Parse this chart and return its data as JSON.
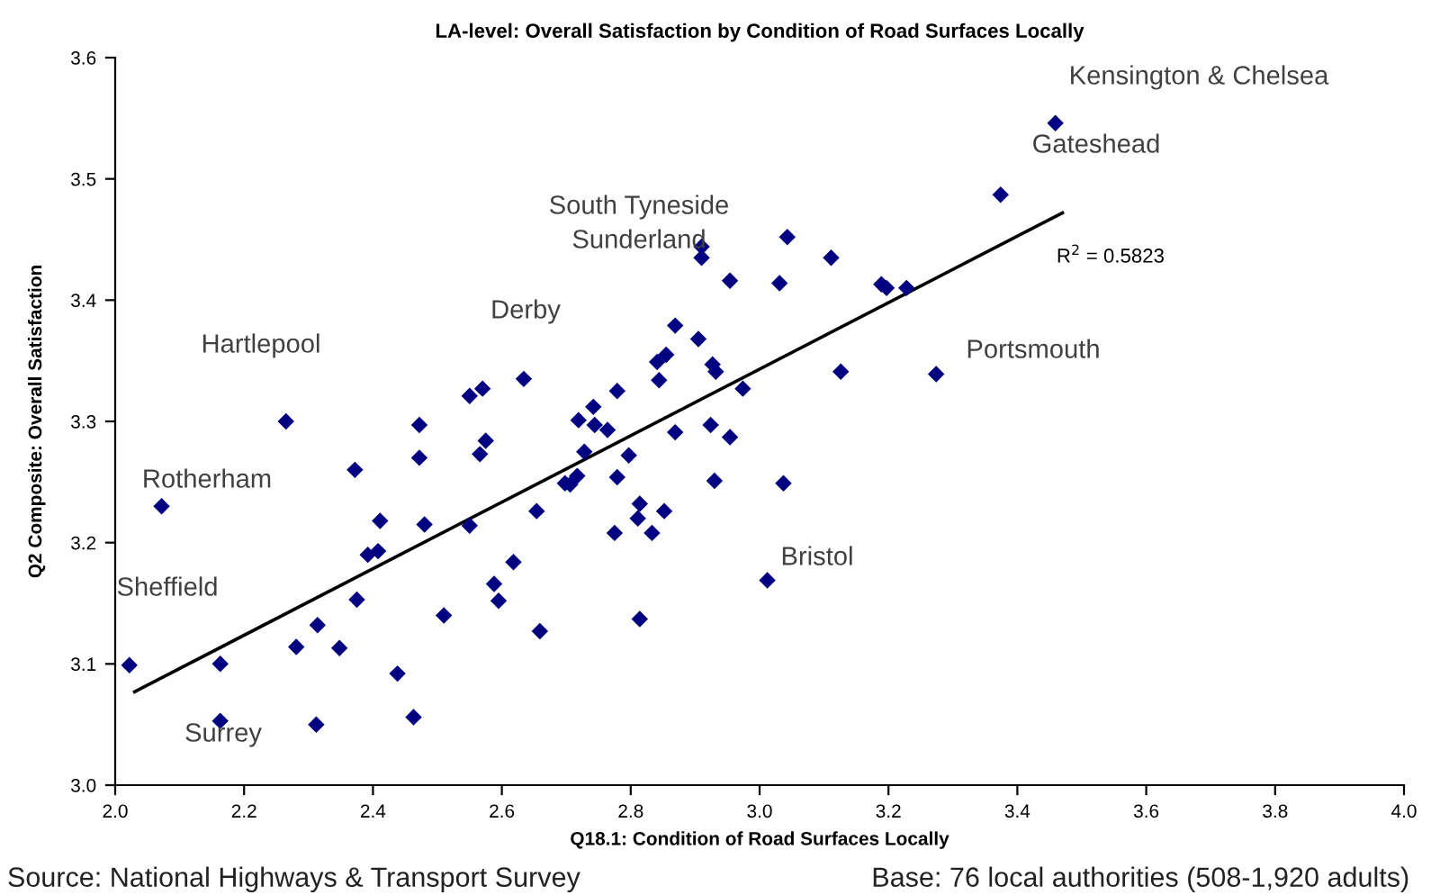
{
  "chart_data": {
    "type": "scatter",
    "title": "LA-level: Overall Satisfaction by Condition of Road Surfaces Locally",
    "xlabel": "Q18.1: Condition of Road Surfaces Locally",
    "ylabel": "Q2 Composite: Overall Satisfaction",
    "xlim": [
      2.0,
      4.0
    ],
    "xticks": [
      {
        "value": 2.0,
        "label": "2.0"
      },
      2.2,
      2.4,
      2.6,
      2.8,
      {
        "value": 3.0,
        "label": "3.0"
      },
      3.2,
      3.4,
      3.6,
      3.8,
      {
        "value": 4.0,
        "label": "4.0"
      }
    ],
    "ylim": [
      3.0,
      3.6
    ],
    "yticks": [
      {
        "value": 3.0,
        "label": "3.0"
      },
      3.1,
      3.2,
      3.3,
      3.4,
      3.5,
      3.6
    ],
    "grid": false,
    "legend": false,
    "marker": "diamond",
    "series": [
      {
        "color": "#000080",
        "x": [
          2.022,
          2.072,
          2.163,
          2.163,
          2.265,
          2.281,
          2.314,
          2.312,
          2.348,
          2.375,
          2.372,
          2.392,
          2.408,
          2.411,
          2.438,
          2.463,
          2.472,
          2.472,
          2.48,
          2.51,
          2.55,
          2.55,
          2.57,
          2.575,
          2.566,
          2.588,
          2.595,
          2.618,
          2.634,
          2.654,
          2.659,
          2.719,
          2.742,
          2.744,
          2.764,
          2.728,
          2.779,
          2.797,
          2.779,
          2.698,
          2.706,
          2.717,
          2.775,
          2.814,
          2.811,
          2.833,
          2.852,
          2.814,
          2.869,
          2.905,
          2.841,
          2.855,
          2.844,
          2.927,
          2.932,
          2.974,
          2.869,
          2.924,
          2.954,
          2.93,
          3.037,
          3.012,
          3.126,
          2.91,
          2.91,
          3.043,
          2.954,
          3.031,
          3.111,
          3.189,
          3.197,
          3.228,
          3.274,
          3.374,
          3.459
        ],
        "values": [
          3.099,
          3.23,
          3.1,
          3.053,
          3.3,
          3.114,
          3.132,
          3.05,
          3.113,
          3.153,
          3.26,
          3.19,
          3.193,
          3.218,
          3.092,
          3.056,
          3.297,
          3.27,
          3.215,
          3.14,
          3.214,
          3.321,
          3.327,
          3.284,
          3.273,
          3.166,
          3.152,
          3.184,
          3.335,
          3.226,
          3.127,
          3.301,
          3.312,
          3.297,
          3.293,
          3.275,
          3.325,
          3.272,
          3.254,
          3.249,
          3.248,
          3.255,
          3.208,
          3.232,
          3.22,
          3.208,
          3.226,
          3.137,
          3.379,
          3.368,
          3.349,
          3.355,
          3.334,
          3.347,
          3.341,
          3.327,
          3.291,
          3.297,
          3.287,
          3.251,
          3.249,
          3.169,
          3.341,
          3.444,
          3.435,
          3.452,
          3.416,
          3.414,
          3.435,
          3.413,
          3.41,
          3.41,
          3.339,
          3.487,
          3.546
        ]
      },
      {
        "type": "line",
        "color": "#000000",
        "marker": "none",
        "line_style": "solid",
        "x": [
          2.03,
          3.47
        ],
        "values": [
          3.077,
          3.472
        ]
      }
    ],
    "annotations": [
      "Kensington & Chelsea",
      "Gateshead",
      "South Tyneside",
      "Sunderland",
      "Derby",
      "Hartlepool",
      "Rotherham",
      "Sheffield",
      "Surrey",
      "Bristol",
      "Portsmouth",
      "R$^{2}$ = 0.5823",
      "Source: National Highways & Transport Survey",
      "Base: 76 local authorities (508-1,920 adults)"
    ]
  }
}
